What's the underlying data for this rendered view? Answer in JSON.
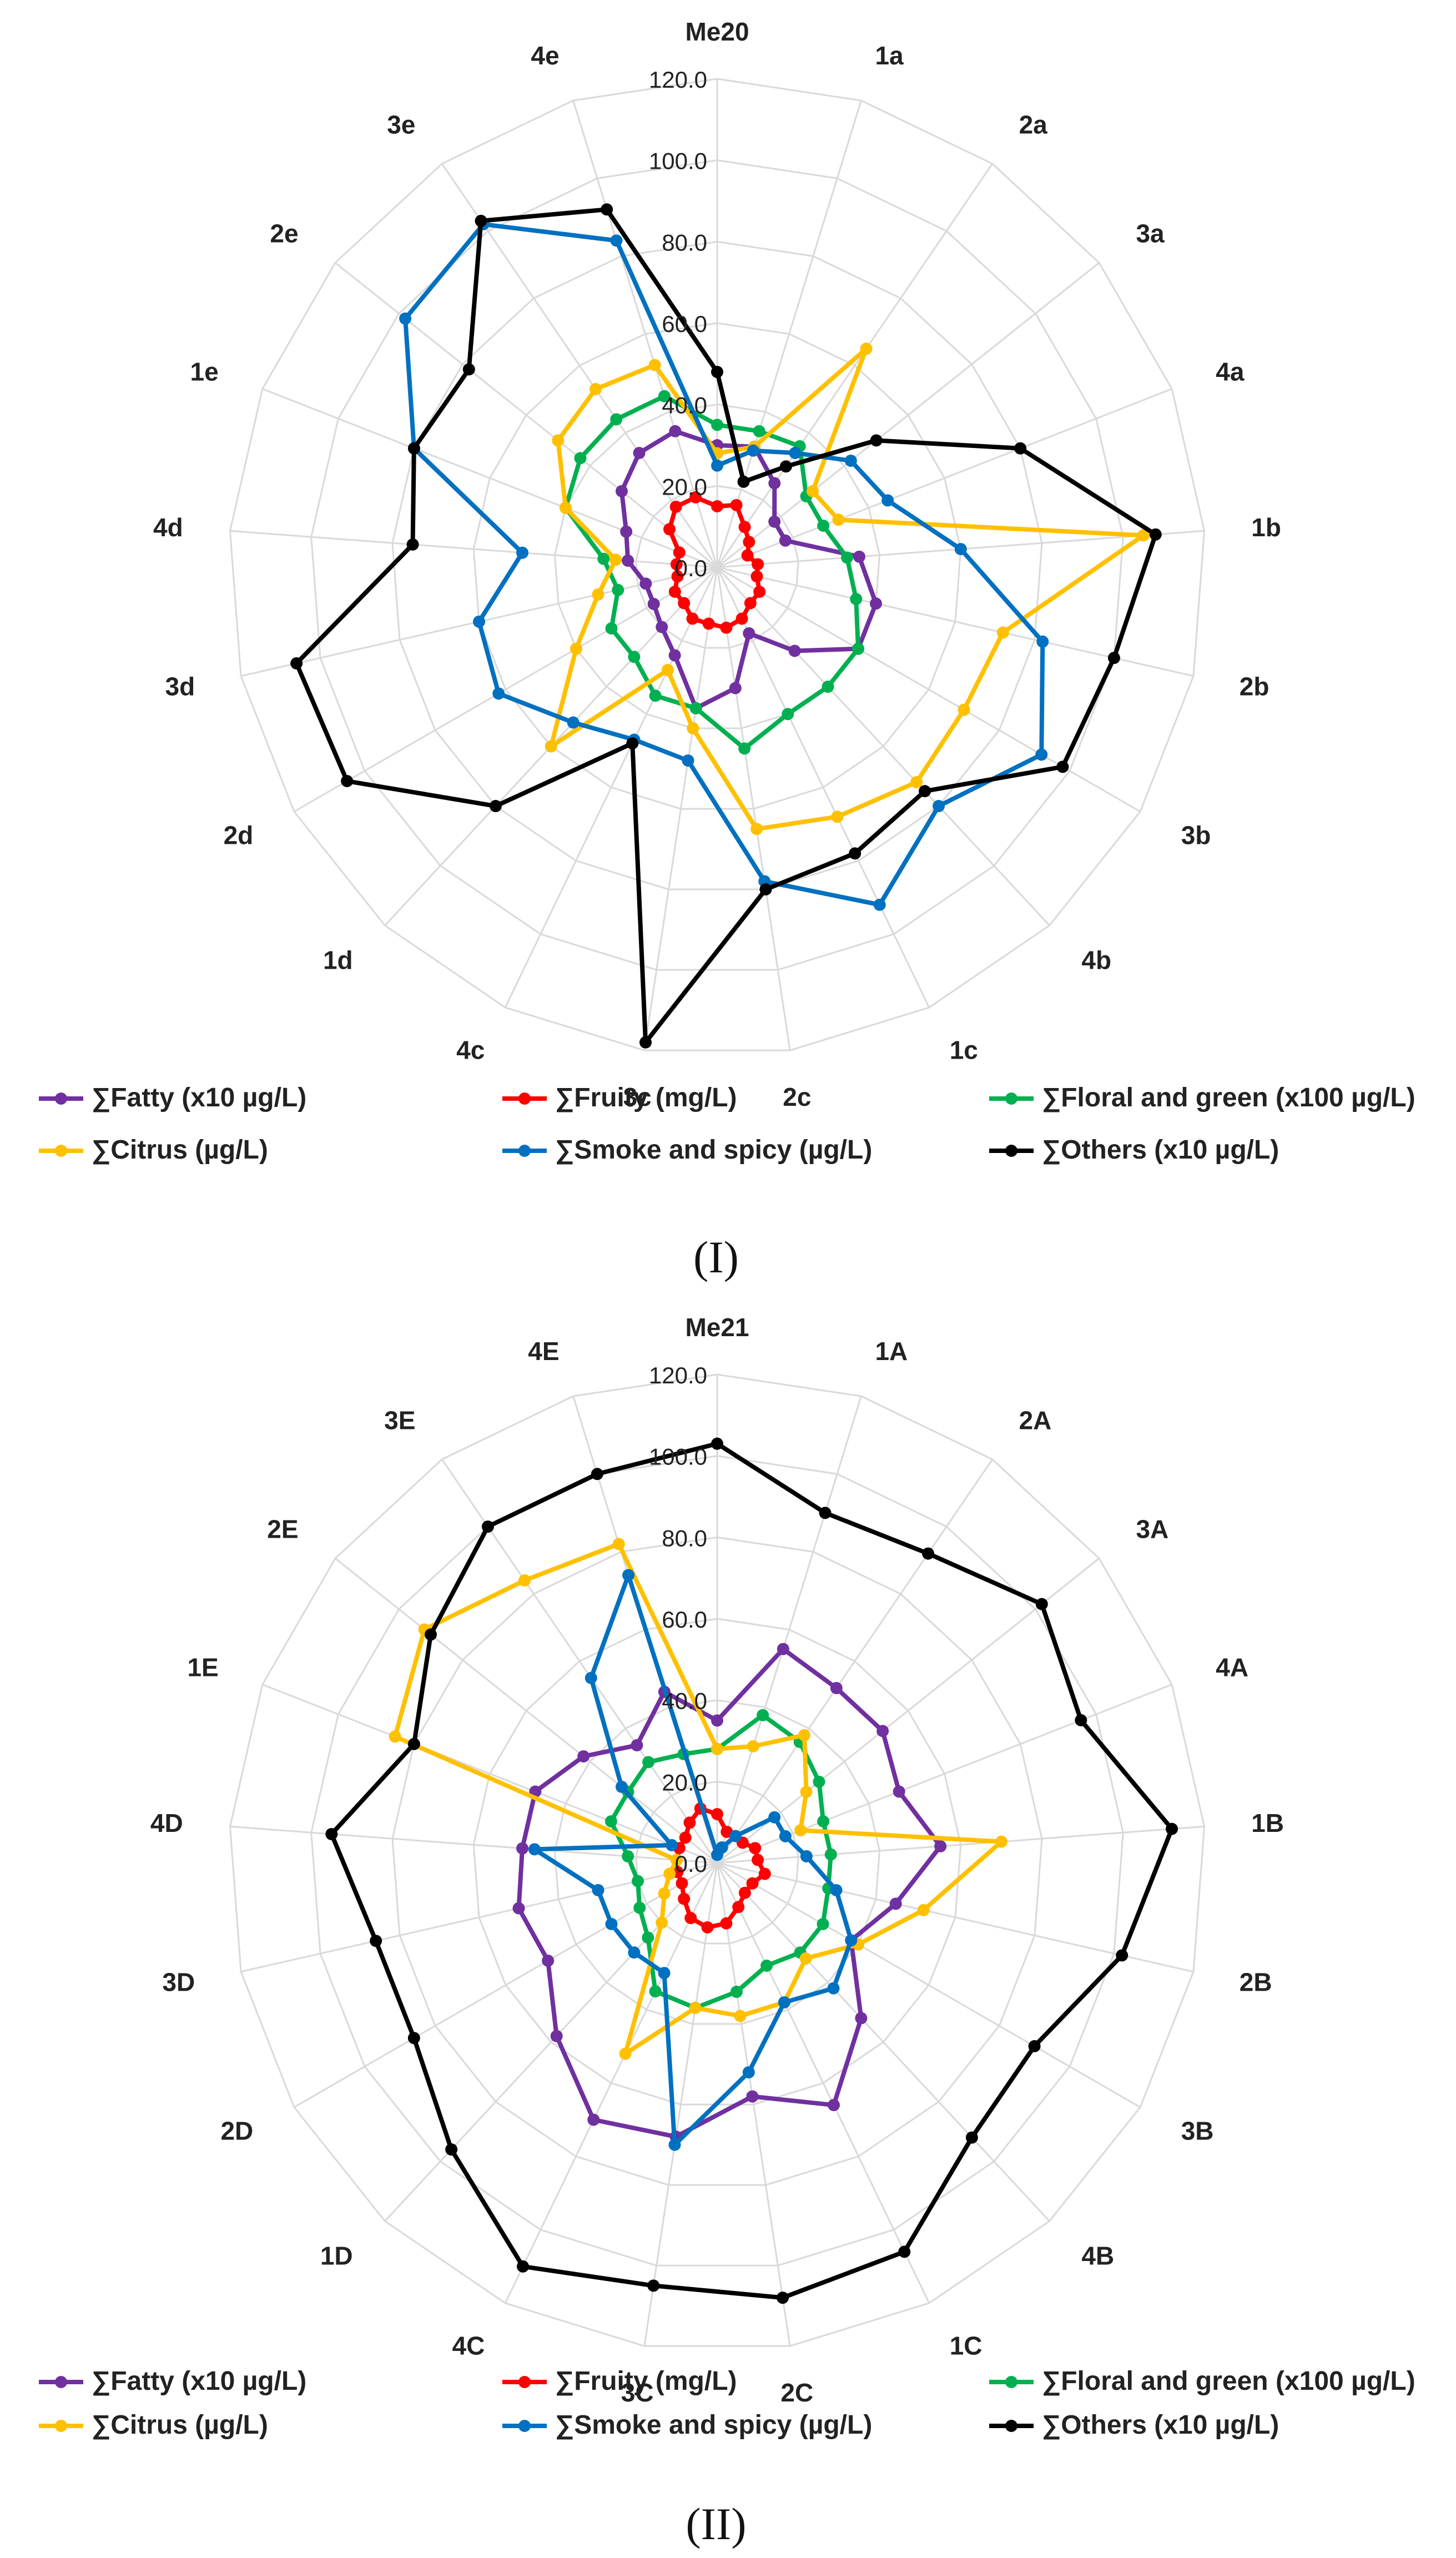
{
  "figure": {
    "panels": [
      {
        "label": "(I)"
      },
      {
        "label": "(II)"
      }
    ]
  },
  "chart_data": [
    {
      "type": "radar",
      "title": "",
      "axes": [
        "Me20",
        "1a",
        "2a",
        "3a",
        "4a",
        "1b",
        "2b",
        "3b",
        "4b",
        "1c",
        "2c",
        "3c",
        "4c",
        "1d",
        "2d",
        "3d",
        "4d",
        "1e",
        "2e",
        "3e",
        "4e"
      ],
      "ticks": [
        "0.0",
        "20.0",
        "40.0",
        "60.0",
        "80.0",
        "100.0",
        "120.0"
      ],
      "rlim": [
        0,
        120
      ],
      "legend_position": "bottom",
      "series": [
        {
          "name": "∑Fatty (x10 µg/L)",
          "color": "#7030A0",
          "values": [
            30,
            31,
            25,
            18,
            18,
            35,
            40,
            40,
            28,
            18,
            30,
            35,
            24,
            20,
            18,
            18,
            22,
            24,
            30,
            34,
            35
          ]
        },
        {
          "name": "∑Fruity (mg/L)",
          "color": "#FF0000",
          "values": [
            15,
            16,
            12,
            10,
            8,
            10,
            10,
            12,
            12,
            14,
            15,
            14,
            14,
            12,
            12,
            10,
            10,
            10,
            15,
            18,
            18
          ]
        },
        {
          "name": "∑Floral and green (x100 µg/L)",
          "color": "#00B050",
          "values": [
            35,
            35,
            36,
            28,
            28,
            32,
            35,
            40,
            40,
            40,
            45,
            35,
            35,
            30,
            30,
            25,
            28,
            40,
            43,
            44,
            44
          ]
        },
        {
          "name": "∑Citrus (µg/L)",
          "color": "#FFC000",
          "values": [
            28,
            31,
            65,
            30,
            32,
            105,
            72,
            70,
            72,
            68,
            65,
            40,
            28,
            60,
            40,
            30,
            25,
            40,
            50,
            53,
            52
          ]
        },
        {
          "name": "∑Smoke and spicy (µg/L)",
          "color": "#0070C0",
          "values": [
            25,
            30,
            34,
            42,
            45,
            60,
            82,
            92,
            80,
            92,
            78,
            48,
            47,
            52,
            62,
            60,
            48,
            80,
            98,
            102,
            84
          ]
        },
        {
          "name": "∑Others (x10 µg/L)",
          "color": "#000000",
          "values": [
            48,
            22,
            30,
            50,
            80,
            108,
            100,
            98,
            75,
            78,
            80,
            118,
            48,
            80,
            105,
            106,
            75,
            80,
            78,
            103,
            92
          ]
        }
      ]
    },
    {
      "type": "radar",
      "title": "",
      "axes": [
        "Me21",
        "1A",
        "2A",
        "3A",
        "4A",
        "1B",
        "2B",
        "3B",
        "4B",
        "1C",
        "2C",
        "3C",
        "4C",
        "1D",
        "2D",
        "3D",
        "4D",
        "1E",
        "2E",
        "3E",
        "4E"
      ],
      "ticks": [
        "0.0",
        "20.0",
        "40.0",
        "60.0",
        "80.0",
        "100.0",
        "120.0"
      ],
      "rlim": [
        0,
        120
      ],
      "legend_position": "bottom",
      "series": [
        {
          "name": "∑Fatty (x10 µg/L)",
          "color": "#7030A0",
          "values": [
            35,
            55,
            52,
            52,
            48,
            55,
            45,
            38,
            52,
            66,
            58,
            68,
            70,
            58,
            48,
            50,
            48,
            48,
            42,
            35,
            44
          ]
        },
        {
          "name": "∑Fruity (mg/L)",
          "color": "#FF0000",
          "values": [
            12,
            8,
            8,
            8,
            10,
            10,
            12,
            10,
            10,
            12,
            15,
            16,
            15,
            12,
            10,
            10,
            10,
            10,
            10,
            12,
            14
          ]
        },
        {
          "name": "∑Floral and green (x100 µg/L)",
          "color": "#00B050",
          "values": [
            28,
            38,
            36,
            32,
            28,
            28,
            28,
            30,
            30,
            28,
            32,
            36,
            35,
            25,
            22,
            20,
            22,
            28,
            28,
            30,
            28
          ]
        },
        {
          "name": "∑Citrus (µg/L)",
          "color": "#FFC000",
          "values": [
            28,
            30,
            38,
            28,
            22,
            70,
            52,
            40,
            32,
            38,
            38,
            36,
            52,
            20,
            15,
            12,
            10,
            85,
            92,
            84,
            82
          ]
        },
        {
          "name": "∑Smoke and spicy (µg/L)",
          "color": "#0070C0",
          "values": [
            2,
            4,
            8,
            18,
            18,
            22,
            30,
            38,
            42,
            38,
            52,
            70,
            30,
            30,
            30,
            30,
            45,
            12,
            30,
            55,
            74
          ]
        },
        {
          "name": "∑Others (x10 µg/L)",
          "color": "#000000",
          "values": [
            103,
            90,
            92,
            102,
            96,
            112,
            102,
            90,
            92,
            106,
            108,
            105,
            110,
            96,
            86,
            86,
            95,
            80,
            90,
            100,
            100
          ]
        }
      ]
    }
  ]
}
